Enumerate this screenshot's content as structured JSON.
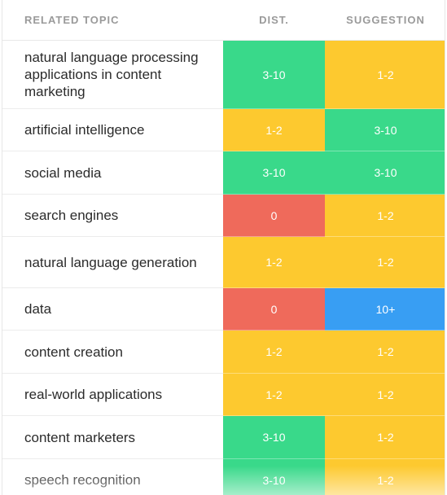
{
  "headers": {
    "topic": "RELATED TOPIC",
    "dist": "DIST.",
    "suggestion": "SUGGESTION"
  },
  "colors": {
    "green": "#39d98a",
    "yellow": "#fdc92f",
    "red": "#ef6a5b",
    "blue": "#389ef3"
  },
  "rows": [
    {
      "topic": "natural language processing applications in content marketing",
      "dist": "3-10",
      "suggestion": "1-2",
      "dist_color": "green",
      "suggestion_color": "yellow"
    },
    {
      "topic": "artificial intelligence",
      "dist": "1-2",
      "suggestion": "3-10",
      "dist_color": "yellow",
      "suggestion_color": "green"
    },
    {
      "topic": "social media",
      "dist": "3-10",
      "suggestion": "3-10",
      "dist_color": "green",
      "suggestion_color": "green"
    },
    {
      "topic": "search engines",
      "dist": "0",
      "suggestion": "1-2",
      "dist_color": "red",
      "suggestion_color": "yellow"
    },
    {
      "topic": "natural language generation",
      "dist": "1-2",
      "suggestion": "1-2",
      "dist_color": "yellow",
      "suggestion_color": "yellow"
    },
    {
      "topic": "data",
      "dist": "0",
      "suggestion": "10+",
      "dist_color": "red",
      "suggestion_color": "blue"
    },
    {
      "topic": "content creation",
      "dist": "1-2",
      "suggestion": "1-2",
      "dist_color": "yellow",
      "suggestion_color": "yellow"
    },
    {
      "topic": "real-world applications",
      "dist": "1-2",
      "suggestion": "1-2",
      "dist_color": "yellow",
      "suggestion_color": "yellow"
    },
    {
      "topic": "content marketers",
      "dist": "3-10",
      "suggestion": "1-2",
      "dist_color": "green",
      "suggestion_color": "yellow"
    },
    {
      "topic": "speech recognition",
      "dist": "3-10",
      "suggestion": "1-2",
      "dist_color": "green",
      "suggestion_color": "yellow"
    }
  ]
}
